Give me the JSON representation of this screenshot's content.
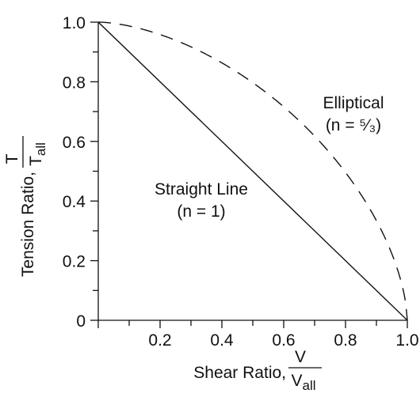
{
  "chart_data": {
    "type": "line",
    "title": "",
    "xlabel": "Shear Ratio,",
    "xlabel_fraction": {
      "numerator": "V",
      "denominator": "V",
      "denominator_sub": "all"
    },
    "ylabel": "Tension Ratio,",
    "ylabel_fraction": {
      "numerator": "T",
      "denominator": "T",
      "denominator_sub": "all"
    },
    "xlim": [
      0,
      1.0
    ],
    "ylim": [
      0,
      1.0
    ],
    "x_tick_labels": [
      "0.2",
      "0.4",
      "0.6",
      "0.8",
      "1.0"
    ],
    "x_tick_values": [
      0.2,
      0.4,
      0.6,
      0.8,
      1.0
    ],
    "y_tick_labels": [
      "0",
      "0.2",
      "0.4",
      "0.6",
      "0.8",
      "1.0"
    ],
    "y_tick_values": [
      0,
      0.2,
      0.4,
      0.6,
      0.8,
      1.0
    ],
    "minor_tick_step": 0.1,
    "grid": false,
    "series": [
      {
        "label_lines": [
          "Straight Line",
          "(n = 1)"
        ],
        "style": "solid",
        "exponent": 1,
        "x": [
          0,
          1.0
        ],
        "y": [
          1.0,
          0
        ]
      },
      {
        "label_lines": [
          "Elliptical",
          "(n = ⁵⁄₃)"
        ],
        "style": "dashed",
        "exponent": 1.6667,
        "x": [
          0,
          0.1,
          0.2,
          0.3,
          0.4,
          0.5,
          0.6,
          0.7,
          0.8,
          0.9,
          0.95,
          1.0
        ],
        "y": [
          1.0,
          0.98,
          0.94,
          0.88,
          0.81,
          0.73,
          0.63,
          0.52,
          0.4,
          0.24,
          0.14,
          0
        ]
      }
    ],
    "colors": {
      "line": "#111111",
      "axis": "#111111",
      "background": "#ffffff"
    }
  }
}
